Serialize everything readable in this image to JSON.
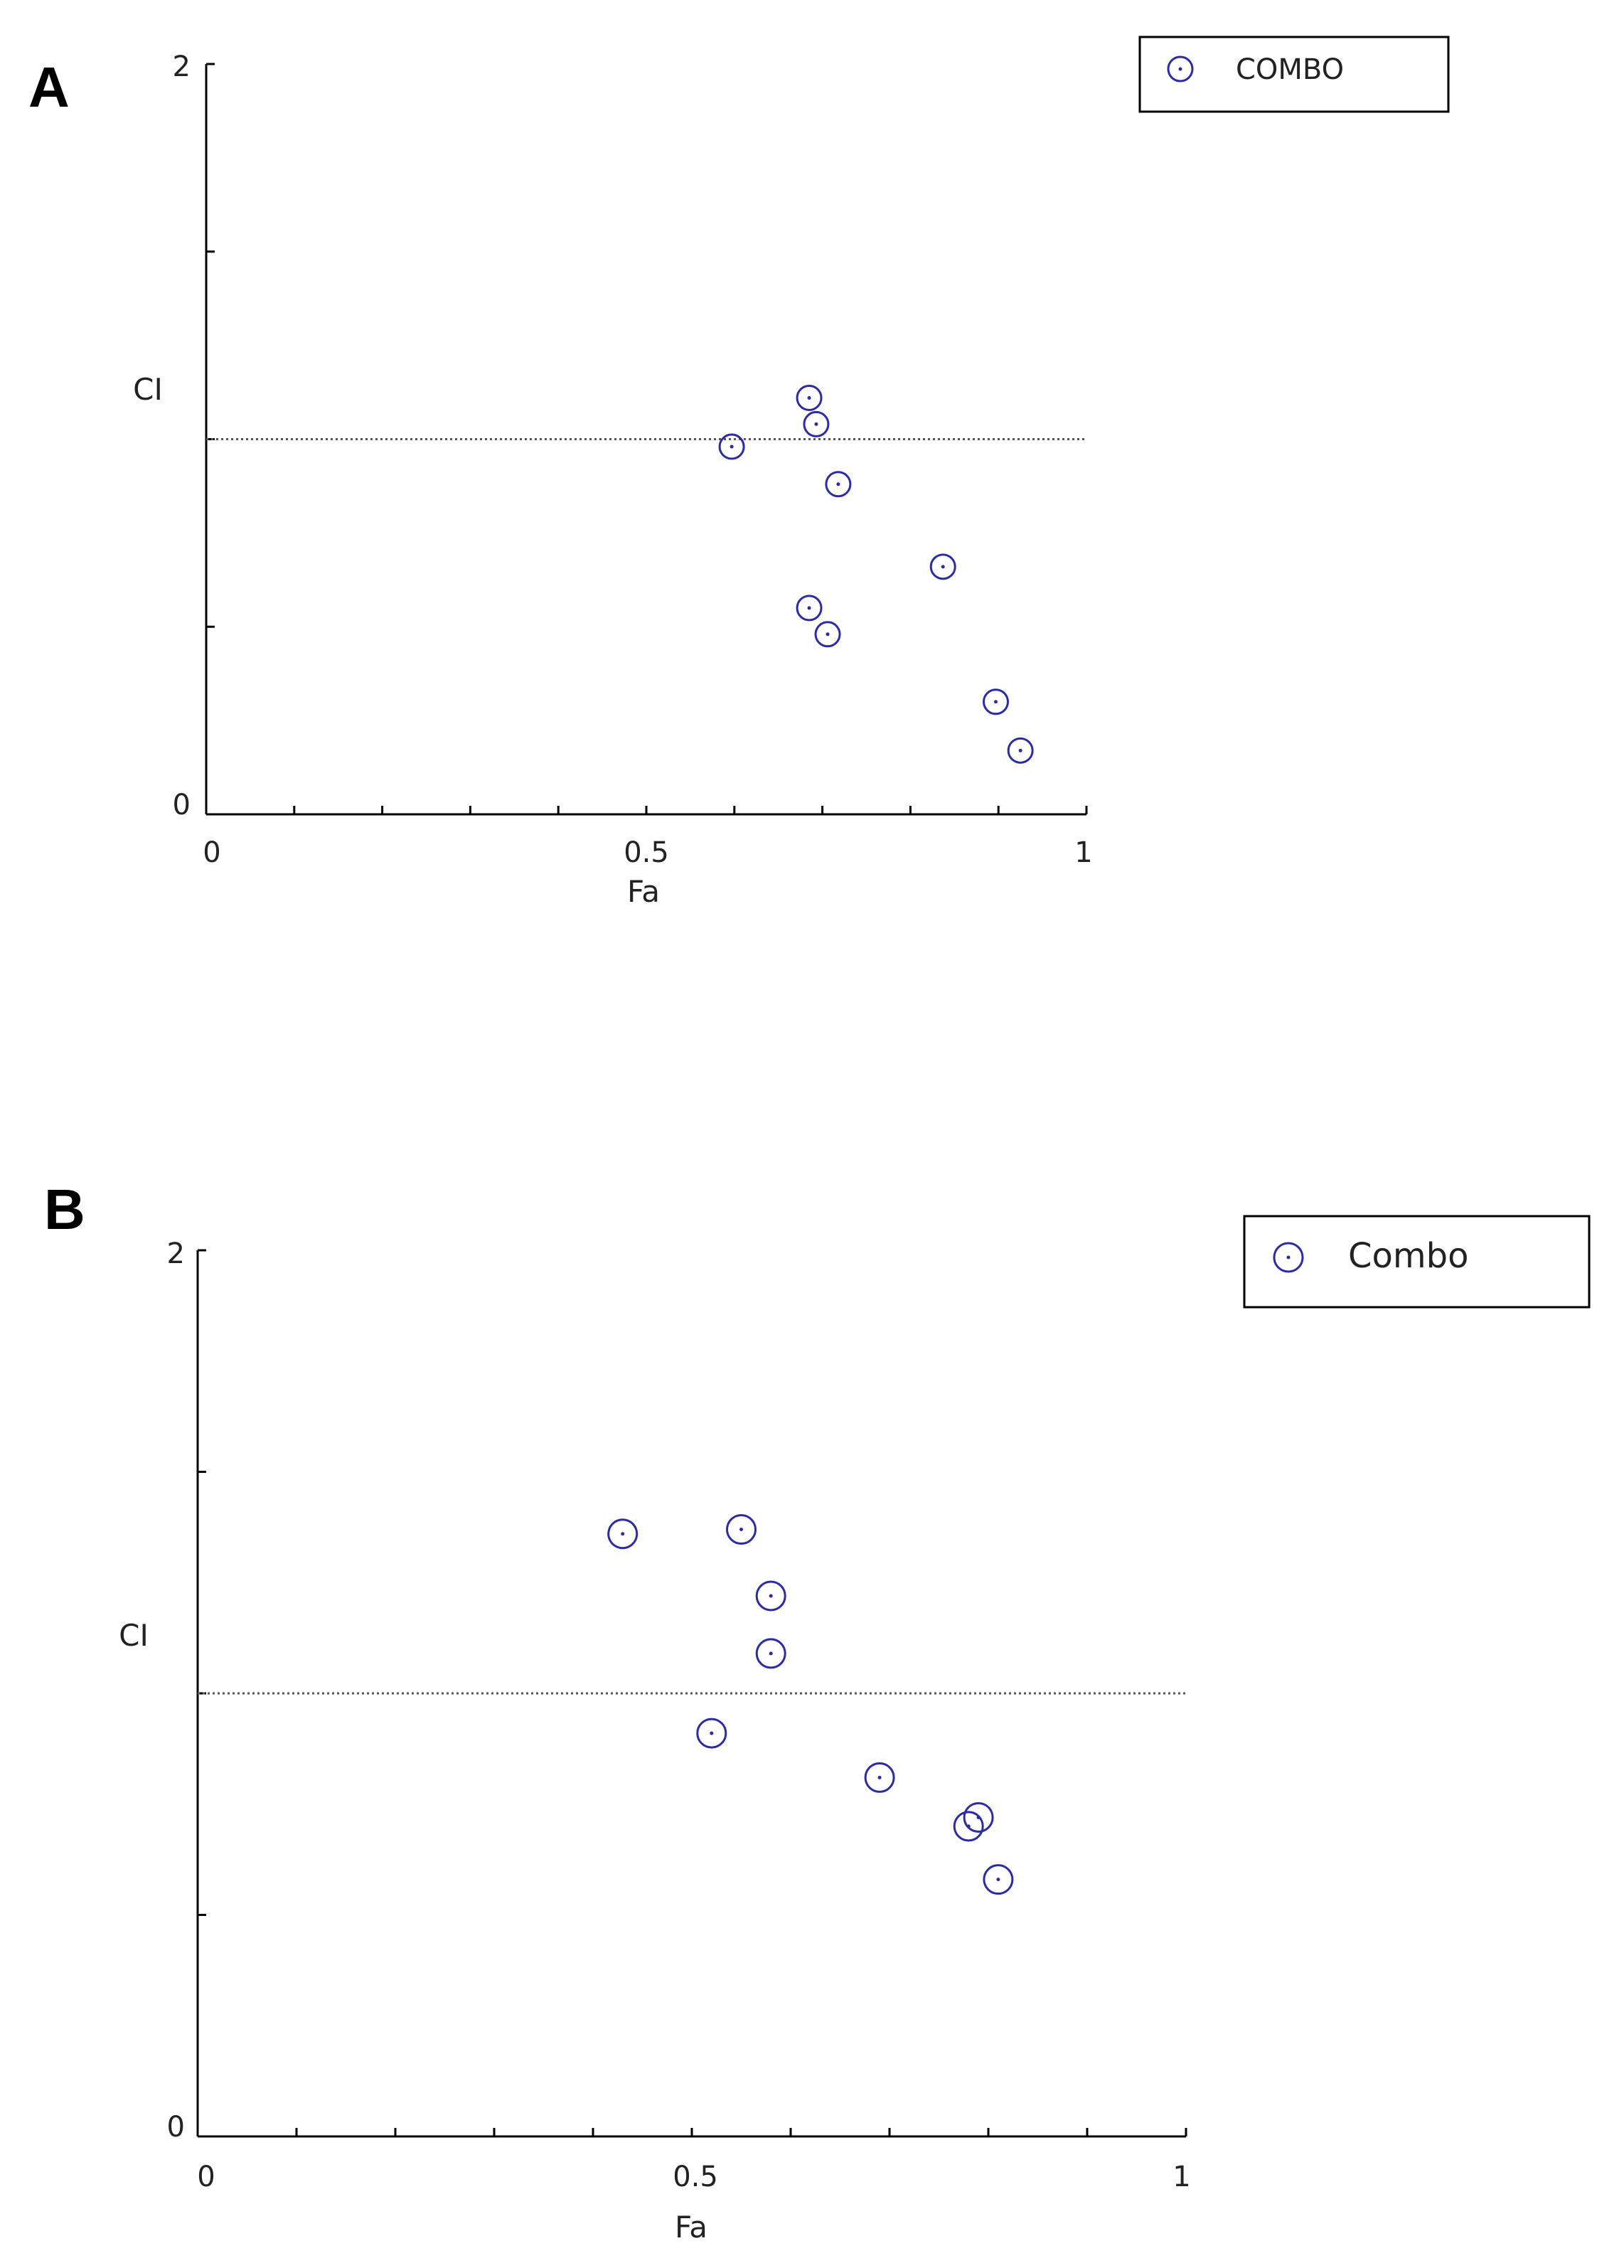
{
  "colors": {
    "marker": "#2b2ba8",
    "axis": "#000000",
    "reference_line": "#555555"
  },
  "chart_data": [
    {
      "type": "scatter",
      "panel_label": "A",
      "xlabel": "Fa",
      "ylabel": "CI",
      "xlim": [
        0,
        1
      ],
      "ylim": [
        0,
        2
      ],
      "x_tick_labels": [
        "0",
        "0.5",
        "1"
      ],
      "y_tick_labels": [
        "0",
        "2"
      ],
      "reference_line": 1,
      "legend": {
        "label": "COMBO",
        "position": "top-right"
      },
      "series": [
        {
          "name": "COMBO",
          "marker": "circle-dot",
          "points": [
            {
              "x": 0.685,
              "y": 1.11
            },
            {
              "x": 0.693,
              "y": 1.04
            },
            {
              "x": 0.597,
              "y": 0.98
            },
            {
              "x": 0.718,
              "y": 0.88
            },
            {
              "x": 0.837,
              "y": 0.66
            },
            {
              "x": 0.685,
              "y": 0.55
            },
            {
              "x": 0.706,
              "y": 0.48
            },
            {
              "x": 0.897,
              "y": 0.3
            },
            {
              "x": 0.925,
              "y": 0.17
            }
          ]
        }
      ]
    },
    {
      "type": "scatter",
      "panel_label": "B",
      "xlabel": "Fa",
      "ylabel": "CI",
      "xlim": [
        0,
        1
      ],
      "ylim": [
        0,
        2
      ],
      "x_tick_labels": [
        "0",
        "0.5",
        "1"
      ],
      "y_tick_labels": [
        "0",
        "2"
      ],
      "reference_line": 1,
      "legend": {
        "label": "Combo",
        "position": "top-right"
      },
      "series": [
        {
          "name": "Combo",
          "marker": "circle-dot",
          "points": [
            {
              "x": 0.43,
              "y": 1.36
            },
            {
              "x": 0.55,
              "y": 1.37
            },
            {
              "x": 0.58,
              "y": 1.22
            },
            {
              "x": 0.58,
              "y": 1.09
            },
            {
              "x": 0.52,
              "y": 0.91
            },
            {
              "x": 0.69,
              "y": 0.81
            },
            {
              "x": 0.79,
              "y": 0.72
            },
            {
              "x": 0.78,
              "y": 0.7
            },
            {
              "x": 0.81,
              "y": 0.58
            }
          ]
        }
      ]
    }
  ]
}
